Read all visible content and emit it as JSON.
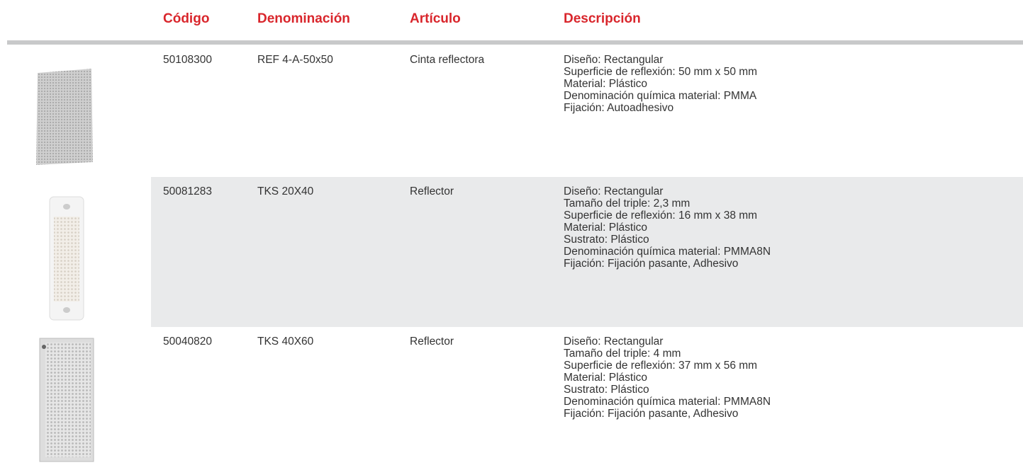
{
  "table": {
    "columns": [
      "Código",
      "Denominación",
      "Artículo",
      "Descripción"
    ],
    "rows": [
      {
        "code": "50108300",
        "name": "REF 4-A-50x50",
        "article": "Cinta reflectora",
        "description": [
          "Diseño: Rectangular",
          "Superficie de reflexión: 50 mm x 50 mm",
          "Material: Plástico",
          "Denominación química material: PMMA",
          "Fijación: Autoadhesivo"
        ]
      },
      {
        "code": "50081283",
        "name": "TKS 20X40",
        "article": "Reflector",
        "description": [
          "Diseño: Rectangular",
          "Tamaño del triple: 2,3 mm",
          "Superficie de reflexión: 16 mm x 38 mm",
          "Material: Plástico",
          "Sustrato: Plástico",
          "Denominación química material: PMMA8N",
          "Fijación: Fijación pasante, Adhesivo"
        ]
      },
      {
        "code": "50040820",
        "name": "TKS 40X60",
        "article": "Reflector",
        "description": [
          "Diseño: Rectangular",
          "Tamaño del triple: 4 mm",
          "Superficie de reflexión: 37 mm x 56 mm",
          "Material: Plástico",
          "Sustrato: Plástico",
          "Denominación química material: PMMA8N",
          "Fijación: Fijación pasante, Adhesivo"
        ]
      }
    ]
  }
}
